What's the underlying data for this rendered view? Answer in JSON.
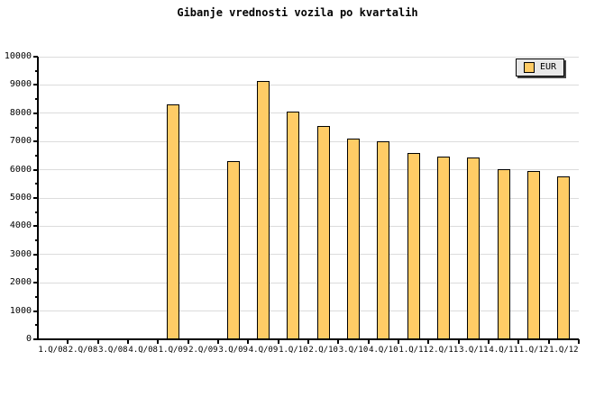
{
  "title": "Gibanje vrednosti vozila po kvartalih",
  "legend": {
    "label": "EUR"
  },
  "colors": {
    "background": "#FFFFFF",
    "bar_fill": "#FFCC66",
    "bar_border": "#000000",
    "gridline": "#DCDCDC",
    "axis": "#000000",
    "legend_bg": "#E8E8E8",
    "legend_shadow": "#444444",
    "text": "#000000"
  },
  "chart_data": {
    "type": "bar",
    "title": "Gibanje vrednosti vozila po kvartalih",
    "categories": [
      "1.Q/08",
      "2.Q/08",
      "3.Q/08",
      "4.Q/08",
      "1.Q/09",
      "2.Q/09",
      "3.Q/09",
      "4.Q/09",
      "1.Q/10",
      "2.Q/10",
      "3.Q/10",
      "4.Q/10",
      "1.Q/11",
      "2.Q/11",
      "3.Q/11",
      "4.Q/11",
      "1.Q/12",
      "1.Q/12"
    ],
    "series": [
      {
        "name": "EUR",
        "values": [
          null,
          null,
          null,
          null,
          8300,
          null,
          6300,
          9150,
          8050,
          7550,
          7100,
          7000,
          6600,
          6480,
          6420,
          6030,
          5970,
          5750
        ]
      }
    ],
    "xlabel": "",
    "ylabel": "",
    "ylim": [
      0,
      10000
    ],
    "ytick_step": 1000,
    "yminor_step": 500,
    "grid": "horizontal-major",
    "legend_position": "top-right"
  }
}
